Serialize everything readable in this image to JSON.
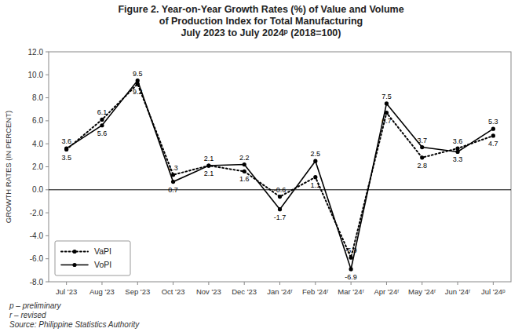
{
  "chart_data": {
    "type": "line",
    "title": "Figure 2. Year-on-Year Growth Rates (%) of Value and Volume\nof Production Index for Total Manufacturing\nJuly 2023 to July 2024ᵖ (2018=100)",
    "ylabel": "GROWTH RATES (IN PERCENT)",
    "categories": [
      "Jul '23",
      "Aug '23",
      "Sep '23",
      "Oct '23",
      "Nov '23",
      "Dec '23",
      "Jan '24ʳ",
      "Feb '24ʳ",
      "Mar '24ʳ",
      "Apr '24ʳ",
      "May '24ʳ",
      "Jun '24ʳ",
      "Jul '24ᵖ"
    ],
    "series": [
      {
        "name": "VaPI",
        "color": "#000000",
        "marker": "circle",
        "line_style": "dotted",
        "values": [
          3.5,
          6.1,
          9.2,
          1.3,
          2.1,
          1.6,
          -0.6,
          1.1,
          -5.9,
          6.7,
          2.8,
          3.6,
          4.7
        ]
      },
      {
        "name": "VoPI",
        "color": "#000000",
        "marker": "circle",
        "line_style": "solid",
        "values": [
          3.6,
          5.6,
          9.5,
          0.7,
          2.1,
          2.2,
          -1.7,
          2.5,
          -6.9,
          7.5,
          3.7,
          3.3,
          5.3
        ]
      }
    ],
    "ylim": [
      -8.0,
      12.0
    ],
    "yticks": [
      {
        "value": -8,
        "label": "-8.0"
      },
      {
        "value": -6,
        "label": "-6.0"
      },
      {
        "value": -4,
        "label": "-4.0"
      },
      {
        "value": -2,
        "label": "-2.0"
      },
      {
        "value": 0,
        "label": "0.0"
      },
      {
        "value": 2,
        "label": "2.0"
      },
      {
        "value": 4,
        "label": "4.0"
      },
      {
        "value": 6,
        "label": "6.0"
      },
      {
        "value": 8,
        "label": "8.0"
      },
      {
        "value": 10,
        "label": "10.0"
      },
      {
        "value": 12,
        "label": "12.0"
      }
    ],
    "grid": false,
    "legend": "lower left",
    "data_labels": true,
    "annotations": [
      "p – preliminary",
      "r – revised",
      "Source: Philippine Statistics Authority"
    ]
  }
}
